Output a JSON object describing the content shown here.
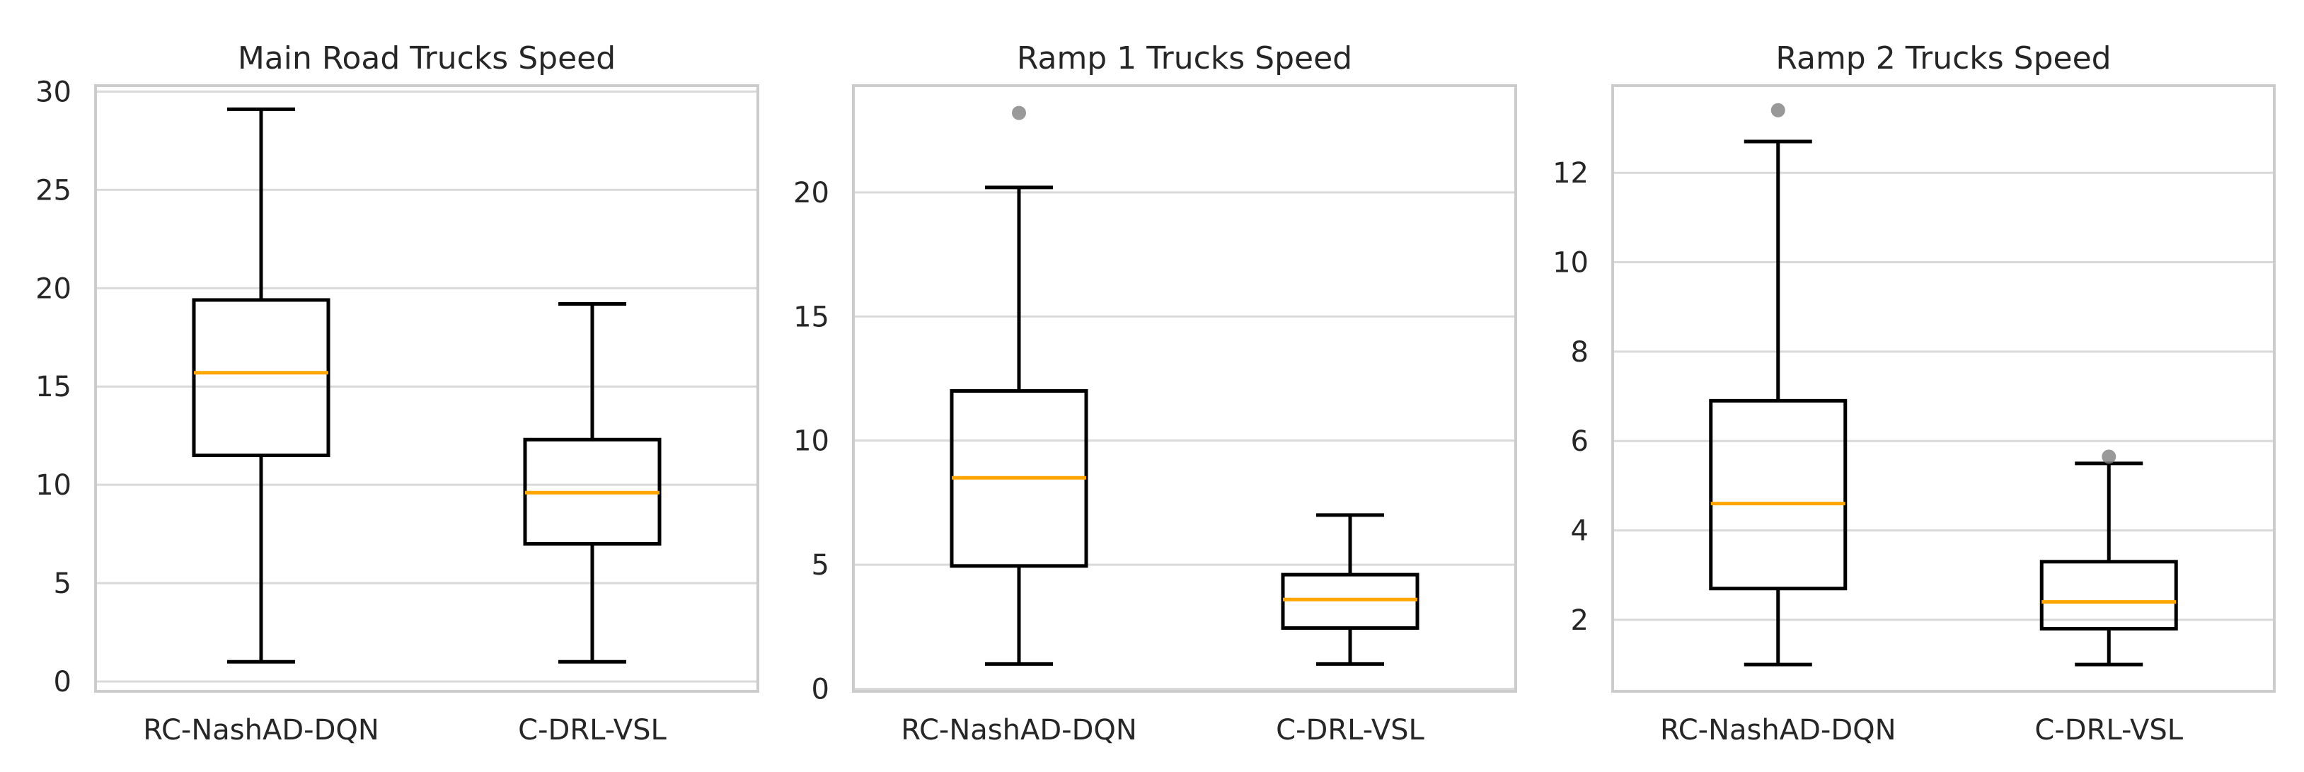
{
  "style": {
    "box_color": "#000000",
    "median_color": "#ffa500",
    "grid_color": "#d9d9d9",
    "frame_color": "#cccccc",
    "flier_color": "#808080",
    "text_color": "#262626"
  },
  "chart_data": [
    {
      "type": "box",
      "title": "Main Road Trucks Speed",
      "xlabel": "",
      "ylabel": "",
      "ylim": [
        -0.5,
        30.3
      ],
      "yticks": [
        0,
        5,
        10,
        15,
        20,
        25,
        30
      ],
      "grid": true,
      "categories": [
        "RC-NashAD-DQN",
        "C-DRL-VSL"
      ],
      "boxes": [
        {
          "label": "RC-NashAD-DQN",
          "whislo": 1,
          "q1": 11.5,
          "med": 15.7,
          "q3": 19.4,
          "whishi": 29.1,
          "fliers": []
        },
        {
          "label": "C-DRL-VSL",
          "whislo": 1,
          "q1": 7.0,
          "med": 9.6,
          "q3": 12.3,
          "whishi": 19.2,
          "fliers": []
        }
      ]
    },
    {
      "type": "box",
      "title": "Ramp 1 Trucks Speed",
      "xlabel": "",
      "ylabel": "",
      "ylim": [
        -0.1,
        24.3
      ],
      "yticks": [
        0,
        5,
        10,
        15,
        20
      ],
      "grid": true,
      "categories": [
        "RC-NashAD-DQN",
        "C-DRL-VSL"
      ],
      "boxes": [
        {
          "label": "RC-NashAD-DQN",
          "whislo": 1,
          "q1": 4.95,
          "med": 8.5,
          "q3": 12.0,
          "whishi": 20.2,
          "fliers": [
            23.2
          ]
        },
        {
          "label": "C-DRL-VSL",
          "whislo": 1,
          "q1": 2.45,
          "med": 3.6,
          "q3": 4.6,
          "whishi": 7.0,
          "fliers": []
        }
      ]
    },
    {
      "type": "box",
      "title": "Ramp 2 Trucks Speed",
      "xlabel": "",
      "ylabel": "",
      "ylim": [
        0.4,
        13.95
      ],
      "yticks": [
        2,
        4,
        6,
        8,
        10,
        12
      ],
      "grid": true,
      "categories": [
        "RC-NashAD-DQN",
        "C-DRL-VSL"
      ],
      "boxes": [
        {
          "label": "RC-NashAD-DQN",
          "whislo": 1,
          "q1": 2.7,
          "med": 4.6,
          "q3": 6.9,
          "whishi": 12.7,
          "fliers": [
            13.4
          ]
        },
        {
          "label": "C-DRL-VSL",
          "whislo": 1,
          "q1": 1.8,
          "med": 2.4,
          "q3": 3.3,
          "whishi": 5.5,
          "fliers": [
            5.65
          ]
        }
      ]
    }
  ]
}
